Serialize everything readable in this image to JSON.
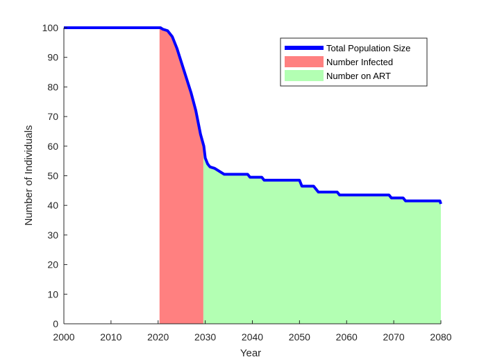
{
  "chart_data": {
    "type": "area",
    "xlabel": "Year",
    "ylabel": "Number of Individuals",
    "xlim": [
      2000,
      2080
    ],
    "ylim": [
      0,
      100
    ],
    "xticks": [
      2000,
      2010,
      2020,
      2030,
      2040,
      2050,
      2060,
      2070,
      2080
    ],
    "yticks": [
      0,
      10,
      20,
      30,
      40,
      50,
      60,
      70,
      80,
      90,
      100
    ],
    "grid": false,
    "legend_position": "top-right",
    "series": [
      {
        "name": "Total Population Size",
        "kind": "line",
        "color": "#0000ff",
        "points": [
          [
            2000,
            100
          ],
          [
            2020,
            100
          ],
          [
            2020.5,
            100
          ],
          [
            2021,
            99.5
          ],
          [
            2022,
            99
          ],
          [
            2023,
            97
          ],
          [
            2024,
            93
          ],
          [
            2025,
            88
          ],
          [
            2026,
            83
          ],
          [
            2027,
            78
          ],
          [
            2028,
            72
          ],
          [
            2029,
            64
          ],
          [
            2029.7,
            60
          ],
          [
            2030,
            56
          ],
          [
            2030.5,
            54
          ],
          [
            2031,
            53
          ],
          [
            2032,
            52.5
          ],
          [
            2033,
            51.5
          ],
          [
            2034,
            50.5
          ],
          [
            2039,
            50.5
          ],
          [
            2039.5,
            49.5
          ],
          [
            2042,
            49.5
          ],
          [
            2042.5,
            48.5
          ],
          [
            2050,
            48.5
          ],
          [
            2050.5,
            46.5
          ],
          [
            2053,
            46.5
          ],
          [
            2054,
            44.5
          ],
          [
            2058,
            44.5
          ],
          [
            2058.5,
            43.5
          ],
          [
            2069,
            43.5
          ],
          [
            2069.5,
            42.5
          ],
          [
            2072,
            42.5
          ],
          [
            2072.5,
            41.5
          ],
          [
            2079.8,
            41.5
          ],
          [
            2080,
            40.5
          ]
        ]
      },
      {
        "name": "Number Infected",
        "kind": "area",
        "color": "#ff8080",
        "x_range": [
          2020.3,
          2029.6
        ]
      },
      {
        "name": "Number on ART",
        "kind": "area",
        "color": "#b3ffb3",
        "x_range": [
          2029.6,
          2080
        ]
      }
    ]
  }
}
